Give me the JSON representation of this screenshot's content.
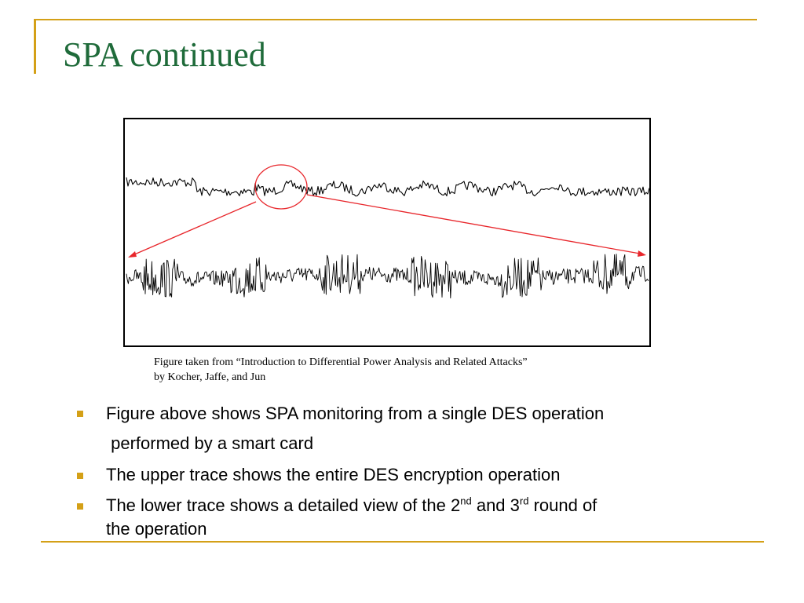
{
  "slide": {
    "title": "SPA continued",
    "accent_color": "#d4a017",
    "title_color": "#1f6b3a"
  },
  "figure": {
    "annotation_color": "#e8262b",
    "caption_line1": "Figure taken from “Introduction to Differential Power Analysis and Related Attacks”",
    "caption_line2": "by Kocher, Jaffe, and Jun"
  },
  "bullets": [
    {
      "line1": "Figure above shows SPA monitoring from a single DES operation",
      "line2": " performed by a smart card"
    },
    {
      "line1": "The upper trace shows the entire DES encryption operation"
    },
    {
      "pre": "The lower trace shows a detailed view of the 2",
      "sup1": "nd",
      "mid": " and 3",
      "sup2": "rd",
      "post": " round of",
      "line2": "the operation"
    }
  ]
}
